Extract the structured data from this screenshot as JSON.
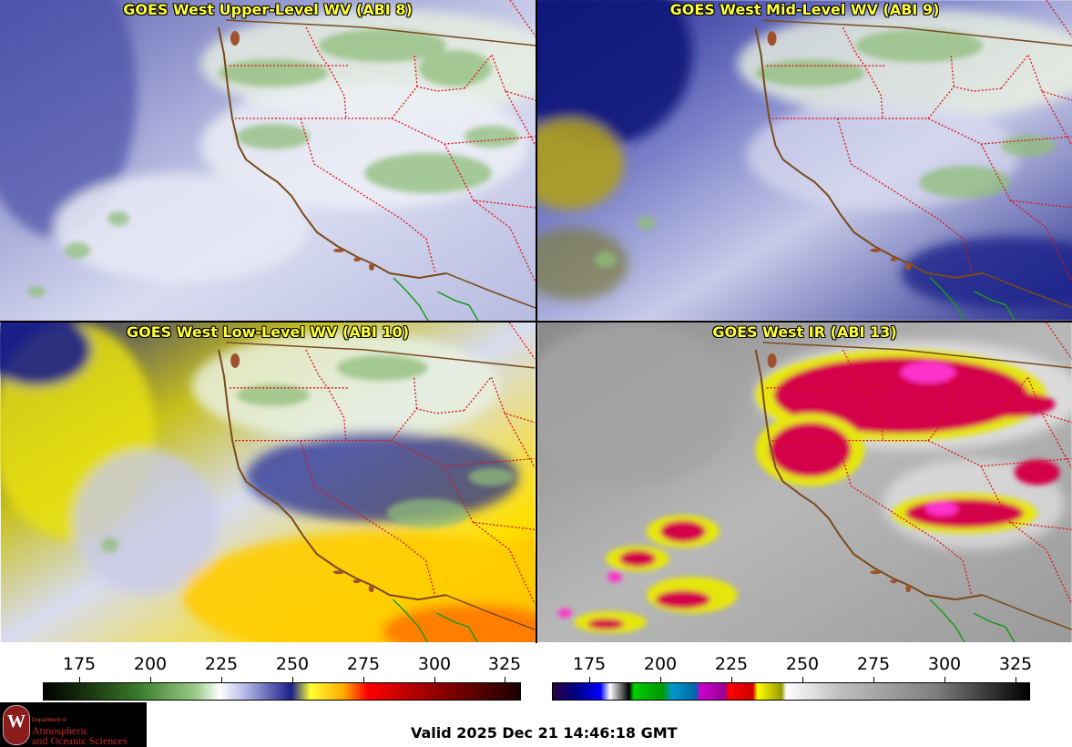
{
  "panels": [
    {
      "title": "GOES West Upper-Level WV (ABI 8)"
    },
    {
      "title": "GOES West Mid-Level WV (ABI 9)"
    },
    {
      "title": "GOES West Low-Level WV (ABI 10)"
    },
    {
      "title": "GOES West IR (ABI 13)"
    }
  ],
  "colorbars": {
    "wv": {
      "ticks": [
        "175",
        "200",
        "225",
        "250",
        "275",
        "300",
        "325"
      ]
    },
    "ir": {
      "ticks": [
        "175",
        "200",
        "225",
        "250",
        "275",
        "300",
        "325"
      ]
    }
  },
  "logo": {
    "department": "Department of",
    "line1": "Atmospheric",
    "line2": "and Oceanic Sciences",
    "mark": "W"
  },
  "valid_time": "Valid 2025 Dec 21 14:46:18 GMT",
  "colors": {
    "title_text": "#ffff33",
    "coast": "#7a4a1a",
    "state_border": "#e01010",
    "mexico_border": "#1a9a1a"
  }
}
